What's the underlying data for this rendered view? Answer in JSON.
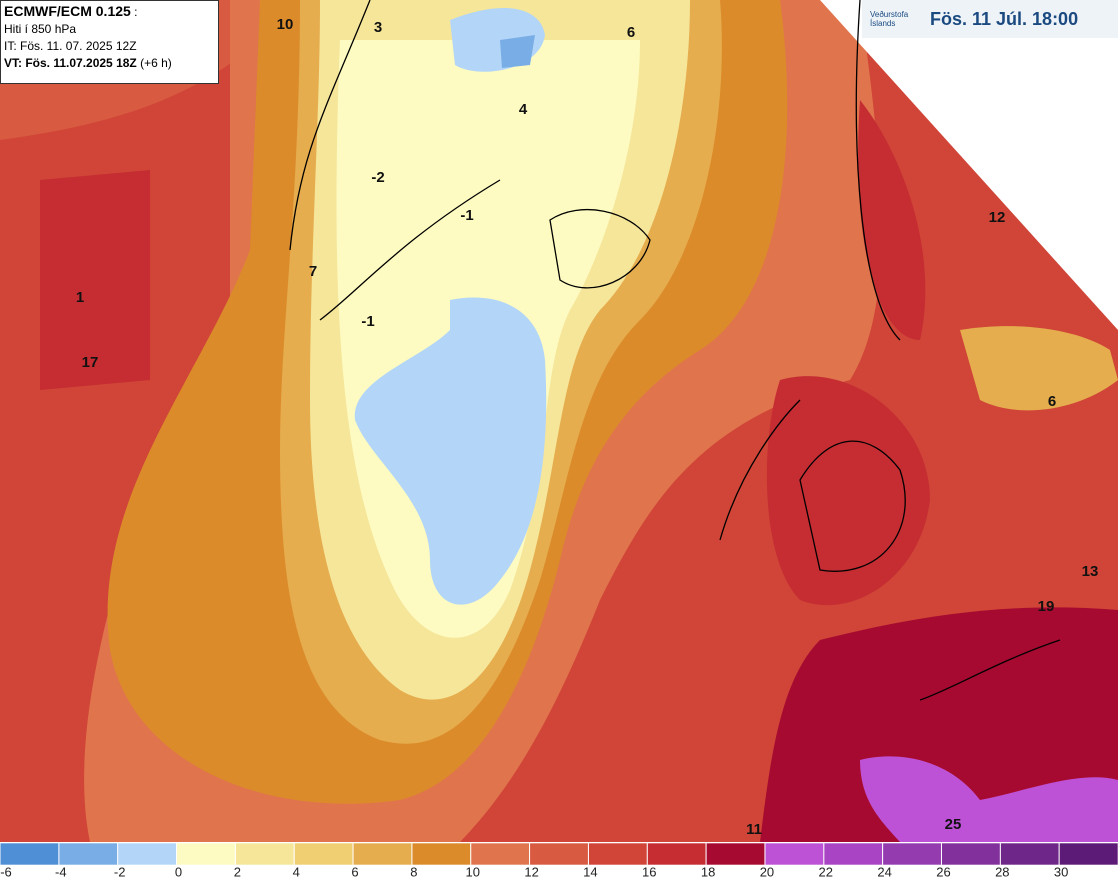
{
  "info_box": {
    "model": "ECMWF/ECM 0.125",
    "suffix": ":",
    "field": "Hiti í 850 hPa",
    "init_time": "IT: Fös. 11. 07. 2025 12Z",
    "valid_time": "VT: Fös. 11.07.2025 18Z",
    "lead": "(+6 h)"
  },
  "logo": {
    "org_line1": "Veðurstofa",
    "org_line2": "Íslands",
    "valid_label": "Fös. 11 Júl. 18:00"
  },
  "map_labels": [
    10,
    3,
    6,
    4,
    -2,
    -1,
    7,
    -1,
    1,
    17,
    12,
    6,
    13,
    19,
    11,
    25
  ],
  "colorbar": {
    "lim": [
      -6,
      32
    ],
    "ticks": [
      -6,
      -4,
      -2,
      0,
      2,
      4,
      6,
      8,
      10,
      12,
      14,
      16,
      18,
      20,
      22,
      24,
      26,
      28,
      30
    ],
    "colors": [
      "#4f8fd6",
      "#79ade6",
      "#b3d5f7",
      "#fdfbc2",
      "#f6e69a",
      "#efcf72",
      "#e5ad4e",
      "#dc8b2b",
      "#e0744c",
      "#d85a40",
      "#d04537",
      "#c52d33",
      "#a70a30",
      "#bd52d6",
      "#a945c4",
      "#953bb0",
      "#82309c",
      "#6f2689",
      "#5c1b76"
    ]
  }
}
